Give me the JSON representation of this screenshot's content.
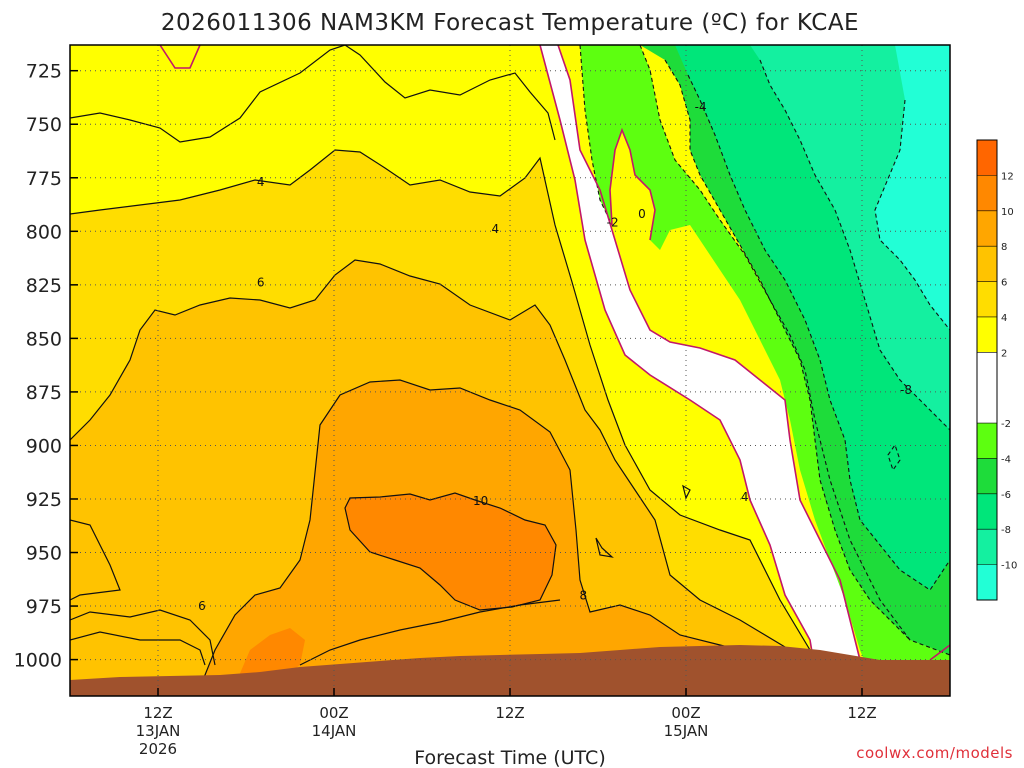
{
  "chart_data": {
    "type": "heatmap",
    "title": "2026011306 NAM3KM Forecast Temperature (ºC) for KCAE",
    "xlabel": "Forecast Time (UTC)",
    "ylabel": "",
    "credit": "coolwx.com/models",
    "y_axis": {
      "unit": "hPa",
      "orientation": "pressure decreasing upward",
      "ylim": [
        1017,
        713
      ],
      "ticks": [
        725,
        750,
        775,
        800,
        825,
        850,
        875,
        900,
        925,
        950,
        975,
        1000
      ]
    },
    "x_axis": {
      "unit": "forecast hour",
      "xlim": [
        0,
        60
      ],
      "ticks": [
        {
          "hour": 6,
          "lines": [
            "12Z",
            "13JAN",
            "2026"
          ]
        },
        {
          "hour": 18,
          "lines": [
            "00Z",
            "14JAN"
          ]
        },
        {
          "hour": 30,
          "lines": [
            "12Z"
          ]
        },
        {
          "hour": 42,
          "lines": [
            "00Z",
            "15JAN"
          ]
        },
        {
          "hour": 54,
          "lines": [
            "12Z"
          ]
        }
      ]
    },
    "grid": true,
    "color_levels": [
      -12,
      -10,
      -8,
      -6,
      -4,
      -2,
      0,
      2,
      4,
      6,
      8,
      10,
      12,
      14
    ],
    "colors": [
      "#22ffd6",
      "#14f0a0",
      "#00e67a",
      "#1edc3a",
      "#5dff10",
      "#ffffff",
      "#ffffff",
      "#ffff00",
      "#ffdd00",
      "#ffc300",
      "#ffa600",
      "#ff8800",
      "#ff6600"
    ],
    "colorbar_labels": [
      "-10",
      "-8",
      "-6",
      "-4",
      "-2",
      "2",
      "4",
      "6",
      "8",
      "10",
      "12"
    ],
    "freezing_contour_color": "#c2176a",
    "ground_color": "#a0522d",
    "contour_labels": [
      {
        "text": "4",
        "hour": 13,
        "pres": 777
      },
      {
        "text": "4",
        "hour": 29,
        "pres": 799
      },
      {
        "text": "6",
        "hour": 13,
        "pres": 824
      },
      {
        "text": "10",
        "hour": 28,
        "pres": 926
      },
      {
        "text": "8",
        "hour": 35,
        "pres": 970
      },
      {
        "text": "6",
        "hour": 9,
        "pres": 975
      },
      {
        "text": "4",
        "hour": 46,
        "pres": 924
      },
      {
        "text": "-2",
        "hour": 37,
        "pres": 796
      },
      {
        "text": "0",
        "hour": 39,
        "pres": 792
      },
      {
        "text": "-4",
        "hour": 43,
        "pres": 742
      },
      {
        "text": "-8",
        "hour": 57,
        "pres": 874
      }
    ]
  }
}
